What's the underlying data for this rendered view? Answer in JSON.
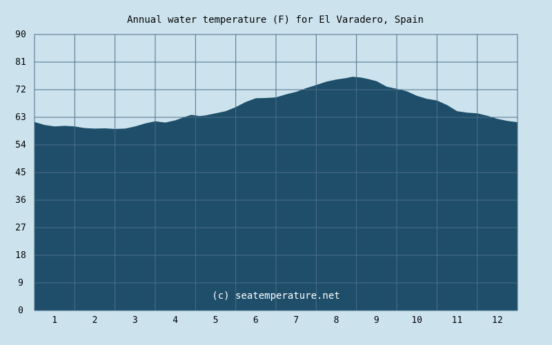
{
  "chart_data": {
    "type": "area",
    "title": "Annual water temperature (F) for El Varadero, Spain",
    "xlabel": "",
    "ylabel": "",
    "x_ticks": [
      "1",
      "2",
      "3",
      "4",
      "5",
      "6",
      "7",
      "8",
      "9",
      "10",
      "11",
      "12"
    ],
    "y_ticks": [
      "0",
      "9",
      "18",
      "27",
      "36",
      "45",
      "54",
      "63",
      "72",
      "81",
      "90"
    ],
    "xlim": [
      0.5,
      12.5
    ],
    "ylim": [
      0,
      90
    ],
    "grid": true,
    "credit": "(c) seatemperature.net",
    "series": [
      {
        "x": [
          0.5,
          0.75,
          1.0,
          1.25,
          1.5,
          1.75,
          2.0,
          2.25,
          2.5,
          2.75,
          3.0,
          3.25,
          3.5,
          3.75,
          4.0,
          4.25,
          4.4,
          4.6,
          4.75,
          5.0,
          5.25,
          5.5,
          5.75,
          6.0,
          6.25,
          6.5,
          6.75,
          7.0,
          7.25,
          7.5,
          7.75,
          8.0,
          8.25,
          8.4,
          8.6,
          8.75,
          9.0,
          9.25,
          9.5,
          9.75,
          10.0,
          10.25,
          10.5,
          10.75,
          11.0,
          11.25,
          11.5,
          11.75,
          12.0,
          12.25,
          12.5
        ],
        "values": [
          61.5,
          60.5,
          60.0,
          60.2,
          60.0,
          59.5,
          59.3,
          59.4,
          59.2,
          59.3,
          60.0,
          61.0,
          61.7,
          61.3,
          62.0,
          63.2,
          63.8,
          63.4,
          63.6,
          64.3,
          65.0,
          66.3,
          68.0,
          69.2,
          69.3,
          69.5,
          70.5,
          71.3,
          72.5,
          73.5,
          74.6,
          75.3,
          75.8,
          76.2,
          76.0,
          75.6,
          74.8,
          73.0,
          72.3,
          71.5,
          70.0,
          69.0,
          68.5,
          67.0,
          65.0,
          64.5,
          64.3,
          63.5,
          62.5,
          61.8,
          61.4
        ]
      }
    ],
    "colors": {
      "background": "#cce3ee",
      "area": "#1e4e6a",
      "grid": "#4d6e86",
      "text": "#000000",
      "credit": "#ffffff"
    }
  }
}
